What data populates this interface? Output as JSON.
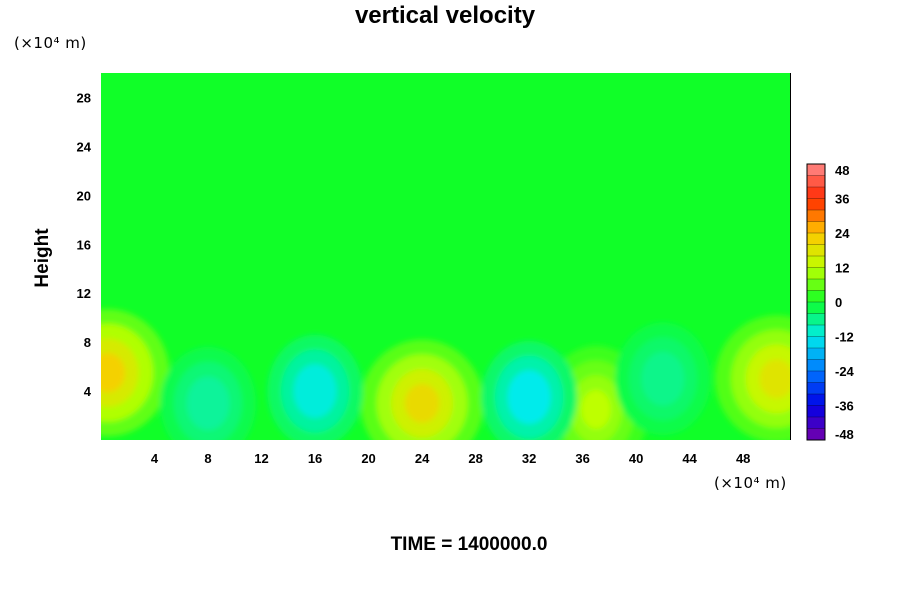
{
  "chart_data": {
    "type": "heatmap",
    "title": "vertical velocity",
    "ylabel": "Height",
    "x_unit": "(×10⁴ m)",
    "y_unit": "(×10⁴ m)",
    "xlim": [
      0,
      51.5
    ],
    "ylim": [
      0,
      30
    ],
    "x_ticks": [
      4,
      8,
      12,
      16,
      20,
      24,
      28,
      32,
      36,
      40,
      44,
      48
    ],
    "y_ticks": [
      4,
      8,
      12,
      16,
      20,
      24,
      28
    ],
    "colorbar": {
      "min": -48,
      "max": 48,
      "step": 4,
      "tick_values": [
        48,
        36,
        24,
        12,
        0,
        -12,
        -24,
        -36,
        -48
      ]
    },
    "footer": "TIME = 1400000.0",
    "features": [
      {
        "kind": "updraft",
        "x": 0.5,
        "y": 5.5,
        "value": 22
      },
      {
        "kind": "updraft",
        "x": 24,
        "y": 3,
        "value": 20
      },
      {
        "kind": "updraft",
        "x": 50.5,
        "y": 5,
        "value": 18
      },
      {
        "kind": "updraft",
        "x": 37,
        "y": 2.5,
        "value": 12
      },
      {
        "kind": "downdraft",
        "x": 16,
        "y": 4,
        "value": -11
      },
      {
        "kind": "downdraft",
        "x": 32,
        "y": 3.5,
        "value": -12
      },
      {
        "kind": "downdraft",
        "x": 8,
        "y": 3,
        "value": -7
      },
      {
        "kind": "downdraft",
        "x": 42,
        "y": 5,
        "value": -6
      }
    ]
  }
}
